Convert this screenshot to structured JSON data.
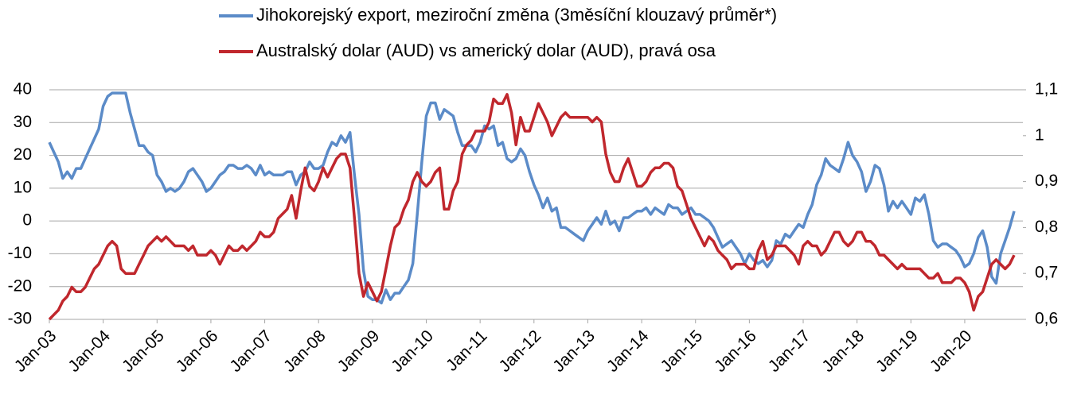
{
  "chart_data": {
    "type": "line",
    "categories": [
      "Jan-03",
      null,
      null,
      null,
      null,
      null,
      null,
      null,
      null,
      null,
      null,
      null,
      "Jan-04",
      null,
      null,
      null,
      null,
      null,
      null,
      null,
      null,
      null,
      null,
      null,
      "Jan-05",
      null,
      null,
      null,
      null,
      null,
      null,
      null,
      null,
      null,
      null,
      null,
      "Jan-06",
      null,
      null,
      null,
      null,
      null,
      null,
      null,
      null,
      null,
      null,
      null,
      "Jan-07",
      null,
      null,
      null,
      null,
      null,
      null,
      null,
      null,
      null,
      null,
      null,
      "Jan-08",
      null,
      null,
      null,
      null,
      null,
      null,
      null,
      null,
      null,
      null,
      null,
      "Jan-09",
      null,
      null,
      null,
      null,
      null,
      null,
      null,
      null,
      null,
      null,
      null,
      "Jan-10",
      null,
      null,
      null,
      null,
      null,
      null,
      null,
      null,
      null,
      null,
      null,
      "Jan-11",
      null,
      null,
      null,
      null,
      null,
      null,
      null,
      null,
      null,
      null,
      null,
      "Jan-12",
      null,
      null,
      null,
      null,
      null,
      null,
      null,
      null,
      null,
      null,
      null,
      "Jan-13",
      null,
      null,
      null,
      null,
      null,
      null,
      null,
      null,
      null,
      null,
      null,
      "Jan-14",
      null,
      null,
      null,
      null,
      null,
      null,
      null,
      null,
      null,
      null,
      null,
      "Jan-15",
      null,
      null,
      null,
      null,
      null,
      null,
      null,
      null,
      null,
      null,
      null,
      "Jan-16",
      null,
      null,
      null,
      null,
      null,
      null,
      null,
      null,
      null,
      null,
      null,
      "Jan-17",
      null,
      null,
      null,
      null,
      null,
      null,
      null,
      null,
      null,
      null,
      null,
      "Jan-18",
      null,
      null,
      null,
      null,
      null,
      null,
      null,
      null,
      null,
      null,
      null,
      "Jan-19",
      null,
      null,
      null,
      null,
      null,
      null,
      null,
      null,
      null,
      null,
      null,
      "Jan-20",
      null,
      null,
      null,
      null,
      null,
      null,
      null,
      null,
      null,
      null,
      null
    ],
    "series": [
      {
        "name": "Jihokorejský export, meziroční změna (3měsíční klouzavý průměr*)",
        "color": "#5b8bc8",
        "axis": "y",
        "values": [
          24,
          21,
          18,
          13,
          15,
          13,
          16,
          16,
          19,
          22,
          25,
          28,
          35,
          38,
          39,
          39,
          39,
          39,
          33,
          28,
          23,
          23,
          21,
          20,
          14,
          12,
          9,
          10,
          9,
          10,
          12,
          15,
          16,
          14,
          12,
          9,
          10,
          12,
          14,
          15,
          17,
          17,
          16,
          16,
          17,
          16,
          14,
          17,
          14,
          15,
          14,
          14,
          14,
          15,
          15,
          11,
          14,
          15,
          18,
          16,
          16,
          17,
          21,
          24,
          23,
          26,
          24,
          27,
          14,
          2,
          -15,
          -23,
          -24,
          -24,
          -25,
          -21,
          -24,
          -22,
          -22,
          -20,
          -18,
          -13,
          2,
          18,
          32,
          36,
          36,
          31,
          34,
          33,
          32,
          27,
          23,
          23,
          23,
          21,
          24,
          29,
          28,
          29,
          23,
          24,
          19,
          18,
          19,
          22,
          20,
          15,
          11,
          8,
          4,
          7,
          3,
          4,
          -2,
          -2,
          -3,
          -4,
          -5,
          -6,
          -3,
          -1,
          1,
          -1,
          3,
          -1,
          0,
          -3,
          1,
          1,
          2,
          3,
          3,
          4,
          2,
          4,
          3,
          2,
          5,
          4,
          4,
          2,
          3,
          4,
          2,
          2,
          1,
          0,
          -2,
          -5,
          -8,
          -7,
          -6,
          -8,
          -10,
          -13,
          -10,
          -12,
          -13,
          -12,
          -14,
          -12,
          -6,
          -7,
          -4,
          -5,
          -3,
          -1,
          -2,
          2,
          5,
          11,
          14,
          19,
          17,
          16,
          15,
          19,
          24,
          20,
          18,
          15,
          9,
          12,
          17,
          16,
          11,
          3,
          6,
          4,
          6,
          4,
          2,
          7,
          6,
          8,
          2,
          -6,
          -8,
          -7,
          -7,
          -8,
          -9,
          -11,
          -14,
          -13,
          -10,
          -5,
          -3,
          -8,
          -17,
          -19,
          -10,
          -6,
          -2,
          3
        ]
      },
      {
        "name": "Australský dolar (AUD) vs americký dolar (AUD), pravá osa",
        "color": "#c0272d",
        "axis": "y2",
        "values": [
          0.6,
          0.61,
          0.62,
          0.64,
          0.65,
          0.67,
          0.66,
          0.66,
          0.67,
          0.69,
          0.71,
          0.72,
          0.74,
          0.76,
          0.77,
          0.76,
          0.71,
          0.7,
          0.7,
          0.7,
          0.72,
          0.74,
          0.76,
          0.77,
          0.78,
          0.77,
          0.78,
          0.77,
          0.76,
          0.76,
          0.76,
          0.75,
          0.76,
          0.74,
          0.74,
          0.74,
          0.75,
          0.74,
          0.72,
          0.74,
          0.76,
          0.75,
          0.75,
          0.76,
          0.75,
          0.76,
          0.77,
          0.79,
          0.78,
          0.78,
          0.79,
          0.82,
          0.83,
          0.84,
          0.87,
          0.82,
          0.88,
          0.93,
          0.89,
          0.88,
          0.9,
          0.93,
          0.91,
          0.93,
          0.95,
          0.96,
          0.96,
          0.93,
          0.82,
          0.7,
          0.65,
          0.68,
          0.66,
          0.64,
          0.66,
          0.71,
          0.76,
          0.8,
          0.81,
          0.84,
          0.86,
          0.9,
          0.92,
          0.9,
          0.89,
          0.9,
          0.92,
          0.93,
          0.84,
          0.84,
          0.88,
          0.9,
          0.96,
          0.98,
          0.99,
          1.01,
          1.01,
          1.01,
          1.03,
          1.08,
          1.07,
          1.07,
          1.09,
          1.05,
          0.98,
          1.04,
          1.01,
          1.01,
          1.04,
          1.07,
          1.05,
          1.03,
          1.0,
          1.02,
          1.04,
          1.05,
          1.04,
          1.04,
          1.04,
          1.04,
          1.04,
          1.03,
          1.04,
          1.03,
          0.96,
          0.92,
          0.9,
          0.9,
          0.93,
          0.95,
          0.92,
          0.89,
          0.89,
          0.9,
          0.92,
          0.93,
          0.93,
          0.94,
          0.94,
          0.93,
          0.89,
          0.88,
          0.85,
          0.82,
          0.8,
          0.78,
          0.76,
          0.78,
          0.77,
          0.75,
          0.74,
          0.73,
          0.71,
          0.72,
          0.72,
          0.72,
          0.71,
          0.71,
          0.75,
          0.77,
          0.73,
          0.74,
          0.76,
          0.76,
          0.76,
          0.75,
          0.74,
          0.72,
          0.76,
          0.77,
          0.76,
          0.76,
          0.74,
          0.75,
          0.77,
          0.79,
          0.79,
          0.77,
          0.76,
          0.77,
          0.79,
          0.79,
          0.77,
          0.77,
          0.76,
          0.74,
          0.74,
          0.73,
          0.72,
          0.71,
          0.72,
          0.71,
          0.71,
          0.71,
          0.71,
          0.7,
          0.69,
          0.69,
          0.7,
          0.68,
          0.68,
          0.68,
          0.69,
          0.69,
          0.68,
          0.66,
          0.62,
          0.65,
          0.66,
          0.69,
          0.72,
          0.73,
          0.72,
          0.71,
          0.72,
          0.74
        ]
      }
    ],
    "ylim": [
      -30,
      40
    ],
    "yticks": [
      -30,
      -20,
      -10,
      0,
      10,
      20,
      30,
      40
    ],
    "y2lim": [
      0.6,
      1.1
    ],
    "y2ticks": [
      {
        "value": 0.6,
        "label": "0,6"
      },
      {
        "value": 0.7,
        "label": "0,7"
      },
      {
        "value": 0.8,
        "label": "0,8"
      },
      {
        "value": 0.9,
        "label": "0,9"
      },
      1,
      {
        "value": 1.1,
        "label": "1,1"
      }
    ],
    "grid": true
  }
}
